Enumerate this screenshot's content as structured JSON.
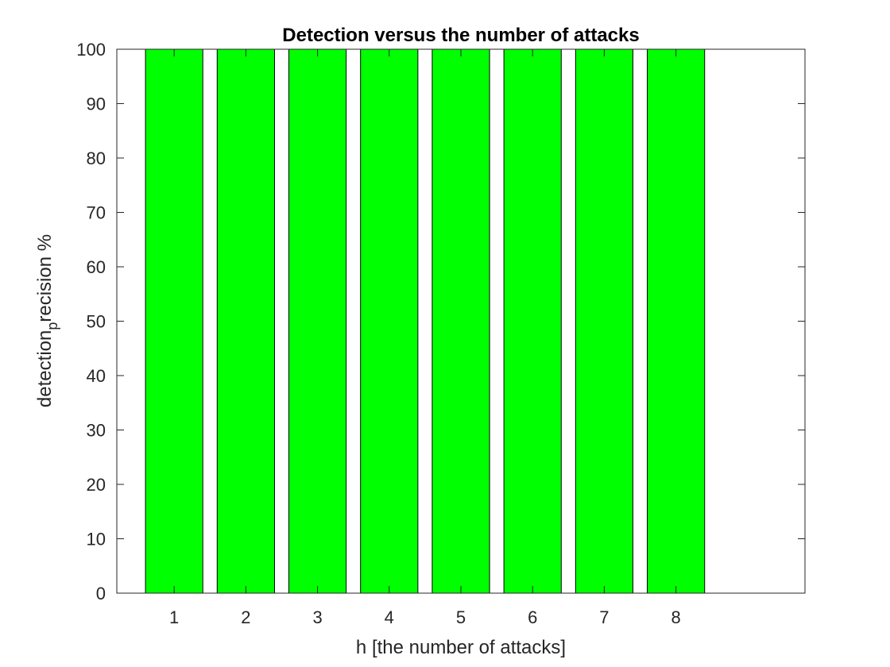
{
  "chart_data": {
    "type": "bar",
    "title": "Detection versus the number of attacks",
    "xlabel": "h [the number of attacks]",
    "ylabel": {
      "main": "detection",
      "subscript": "p",
      "rest": "recision %"
    },
    "categories": [
      "1",
      "2",
      "3",
      "4",
      "5",
      "6",
      "7",
      "8"
    ],
    "values": [
      100,
      100,
      100,
      100,
      100,
      100,
      100,
      100
    ],
    "xlim": [
      0.2,
      9.8
    ],
    "ylim": [
      0,
      100
    ],
    "yticks": [
      0,
      10,
      20,
      30,
      40,
      50,
      60,
      70,
      80,
      90,
      100
    ],
    "bar_color": "#00ff00",
    "edge_color": "#000000",
    "grid": false,
    "legend": "none"
  }
}
